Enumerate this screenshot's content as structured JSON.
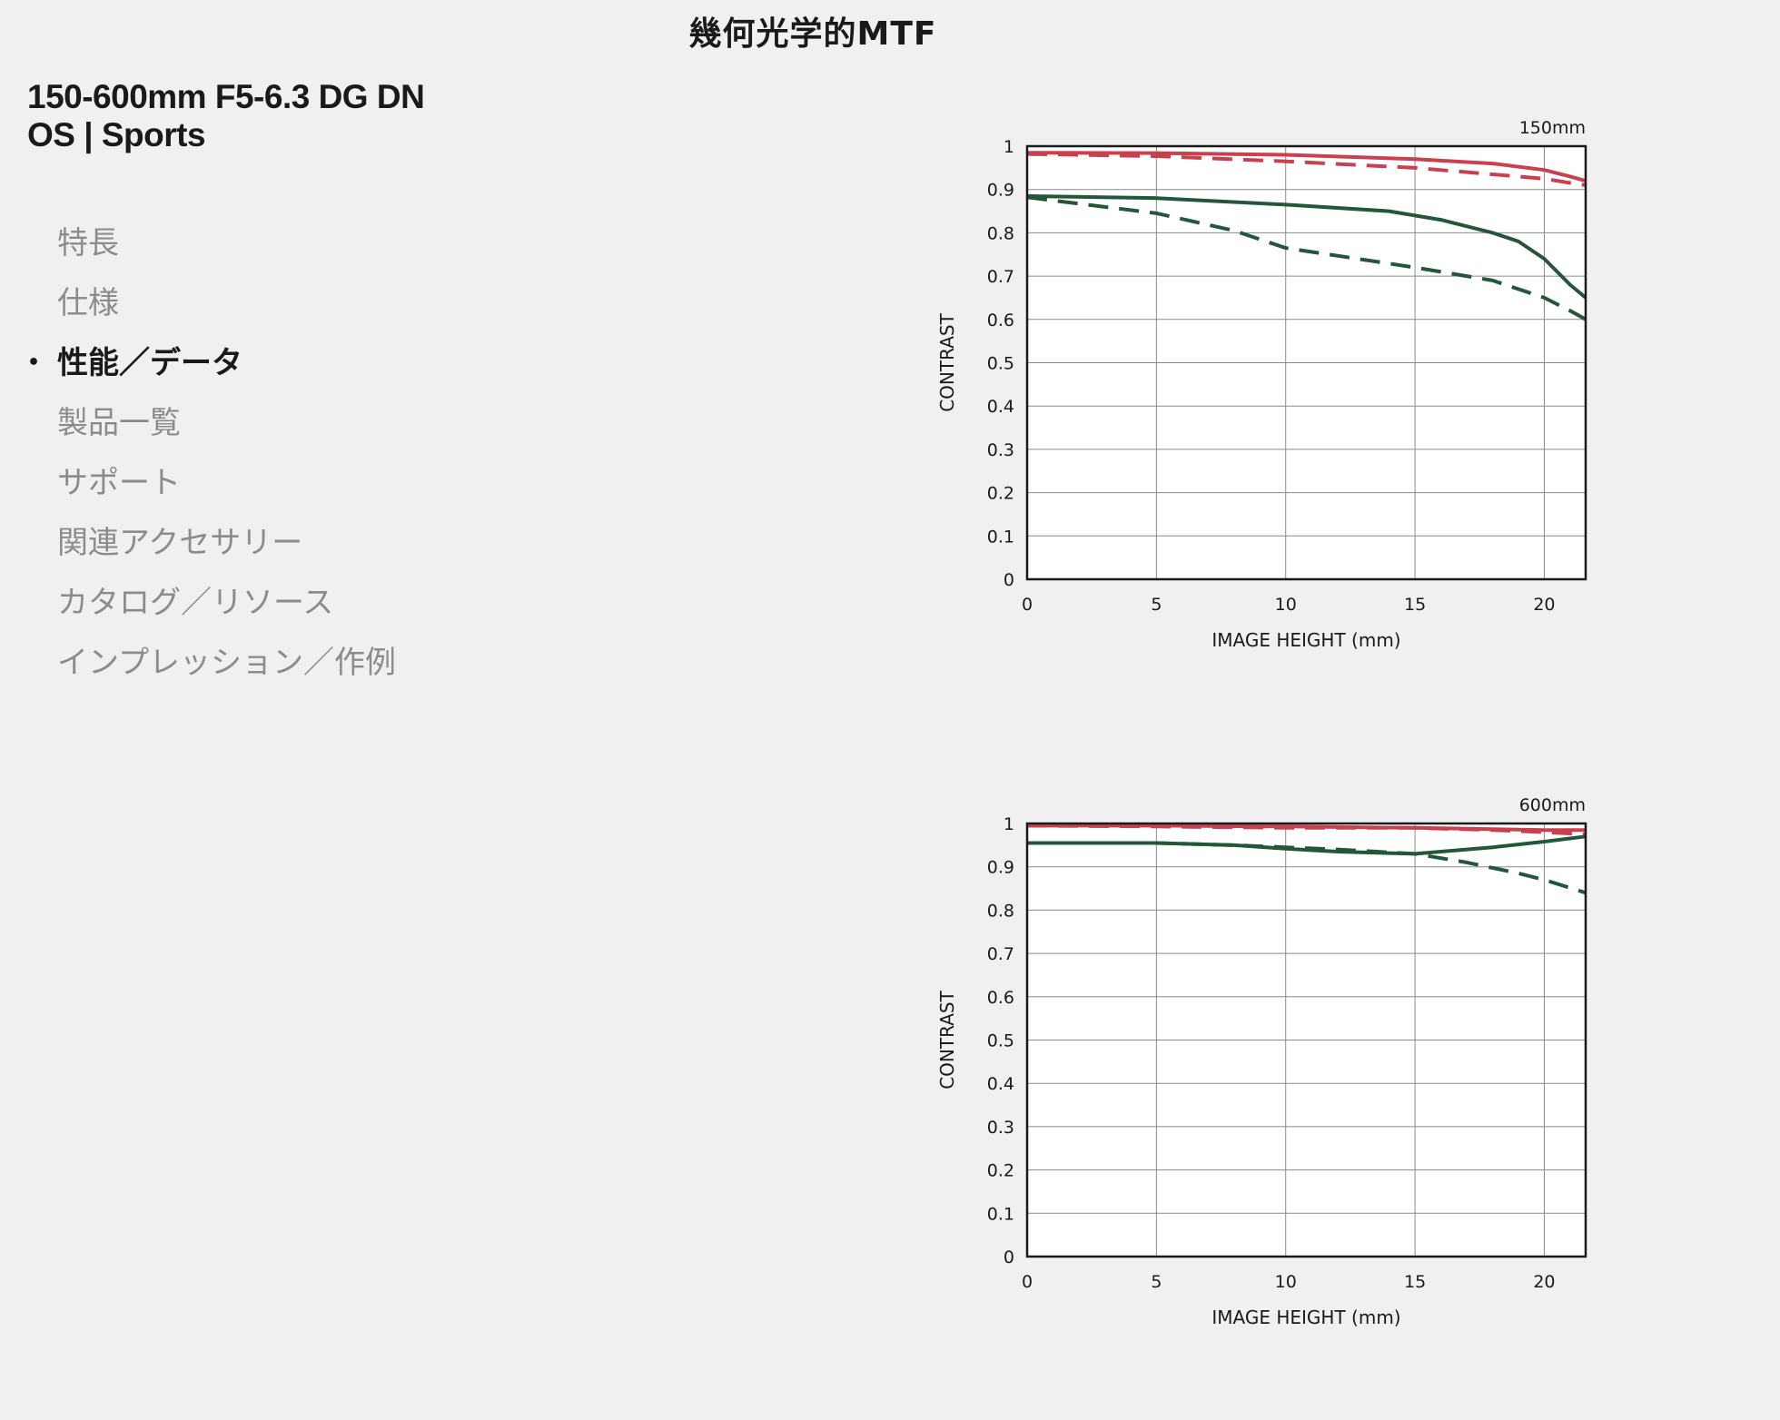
{
  "page": {
    "heading": "幾何光学的MTF"
  },
  "product": {
    "title_line1": "150-600mm F5-6.3 DG DN",
    "title_line2": "OS | Sports"
  },
  "nav": {
    "items": [
      {
        "label": "特長",
        "active": false
      },
      {
        "label": "仕様",
        "active": false
      },
      {
        "label": "性能／データ",
        "active": true,
        "bullet": "•"
      },
      {
        "label": "製品一覧",
        "active": false
      },
      {
        "label": "サポート",
        "active": false
      },
      {
        "label": "関連アクセサリー",
        "active": false
      },
      {
        "label": "カタログ／リソース",
        "active": false
      },
      {
        "label": "インプレッション／作例",
        "active": false
      }
    ]
  },
  "colors": {
    "red": "#c9404e",
    "green": "#24573a",
    "grid": "#8a8a8a",
    "frame": "#1a1a1a"
  },
  "chart_data": [
    {
      "type": "line",
      "focal_label": "150mm",
      "xlabel": "IMAGE HEIGHT (mm)",
      "ylabel": "CONTRAST",
      "xlim": [
        0,
        21.6
      ],
      "ylim": [
        0,
        1
      ],
      "x_ticks": [
        "0",
        "5",
        "10",
        "15",
        "20"
      ],
      "y_ticks": [
        "0",
        "0.1",
        "0.2",
        "0.3",
        "0.4",
        "0.5",
        "0.6",
        "0.7",
        "0.8",
        "0.9",
        "1"
      ],
      "grid": true,
      "series": [
        {
          "color": "red",
          "dash": false,
          "x": [
            0,
            5,
            10,
            15,
            18,
            20,
            21,
            21.6
          ],
          "y": [
            0.985,
            0.984,
            0.98,
            0.97,
            0.96,
            0.945,
            0.93,
            0.92
          ]
        },
        {
          "color": "red",
          "dash": true,
          "x": [
            0,
            5,
            10,
            15,
            18,
            20,
            21,
            21.6
          ],
          "y": [
            0.982,
            0.977,
            0.965,
            0.95,
            0.935,
            0.925,
            0.915,
            0.91
          ]
        },
        {
          "color": "green",
          "dash": false,
          "x": [
            0,
            5,
            10,
            14,
            16,
            18,
            19,
            20,
            21,
            21.6
          ],
          "y": [
            0.885,
            0.88,
            0.865,
            0.85,
            0.83,
            0.8,
            0.78,
            0.74,
            0.68,
            0.65
          ]
        },
        {
          "color": "green",
          "dash": true,
          "x": [
            0,
            5,
            8,
            10,
            15,
            18,
            20,
            21,
            21.6
          ],
          "y": [
            0.882,
            0.845,
            0.805,
            0.765,
            0.72,
            0.69,
            0.65,
            0.62,
            0.6
          ]
        }
      ]
    },
    {
      "type": "line",
      "focal_label": "600mm",
      "xlabel": "IMAGE HEIGHT (mm)",
      "ylabel": "CONTRAST",
      "xlim": [
        0,
        21.6
      ],
      "ylim": [
        0,
        1
      ],
      "x_ticks": [
        "0",
        "5",
        "10",
        "15",
        "20"
      ],
      "y_ticks": [
        "0",
        "0.1",
        "0.2",
        "0.3",
        "0.4",
        "0.5",
        "0.6",
        "0.7",
        "0.8",
        "0.9",
        "1"
      ],
      "grid": true,
      "series": [
        {
          "color": "red",
          "dash": false,
          "x": [
            0,
            5,
            10,
            15,
            20,
            21.6
          ],
          "y": [
            0.995,
            0.995,
            0.993,
            0.99,
            0.985,
            0.985
          ]
        },
        {
          "color": "red",
          "dash": true,
          "x": [
            0,
            5,
            10,
            15,
            18,
            20,
            21.6
          ],
          "y": [
            0.995,
            0.993,
            0.99,
            0.99,
            0.985,
            0.98,
            0.975
          ]
        },
        {
          "color": "green",
          "dash": false,
          "x": [
            0,
            5,
            8,
            10,
            12,
            15,
            16,
            18,
            20,
            21.6
          ],
          "y": [
            0.955,
            0.955,
            0.95,
            0.942,
            0.935,
            0.93,
            0.935,
            0.945,
            0.958,
            0.97
          ]
        },
        {
          "color": "green",
          "dash": true,
          "x": [
            0,
            5,
            8,
            10,
            12,
            15,
            17,
            19,
            20,
            21.6
          ],
          "y": [
            0.955,
            0.955,
            0.95,
            0.945,
            0.94,
            0.93,
            0.91,
            0.885,
            0.87,
            0.84
          ]
        }
      ]
    }
  ]
}
